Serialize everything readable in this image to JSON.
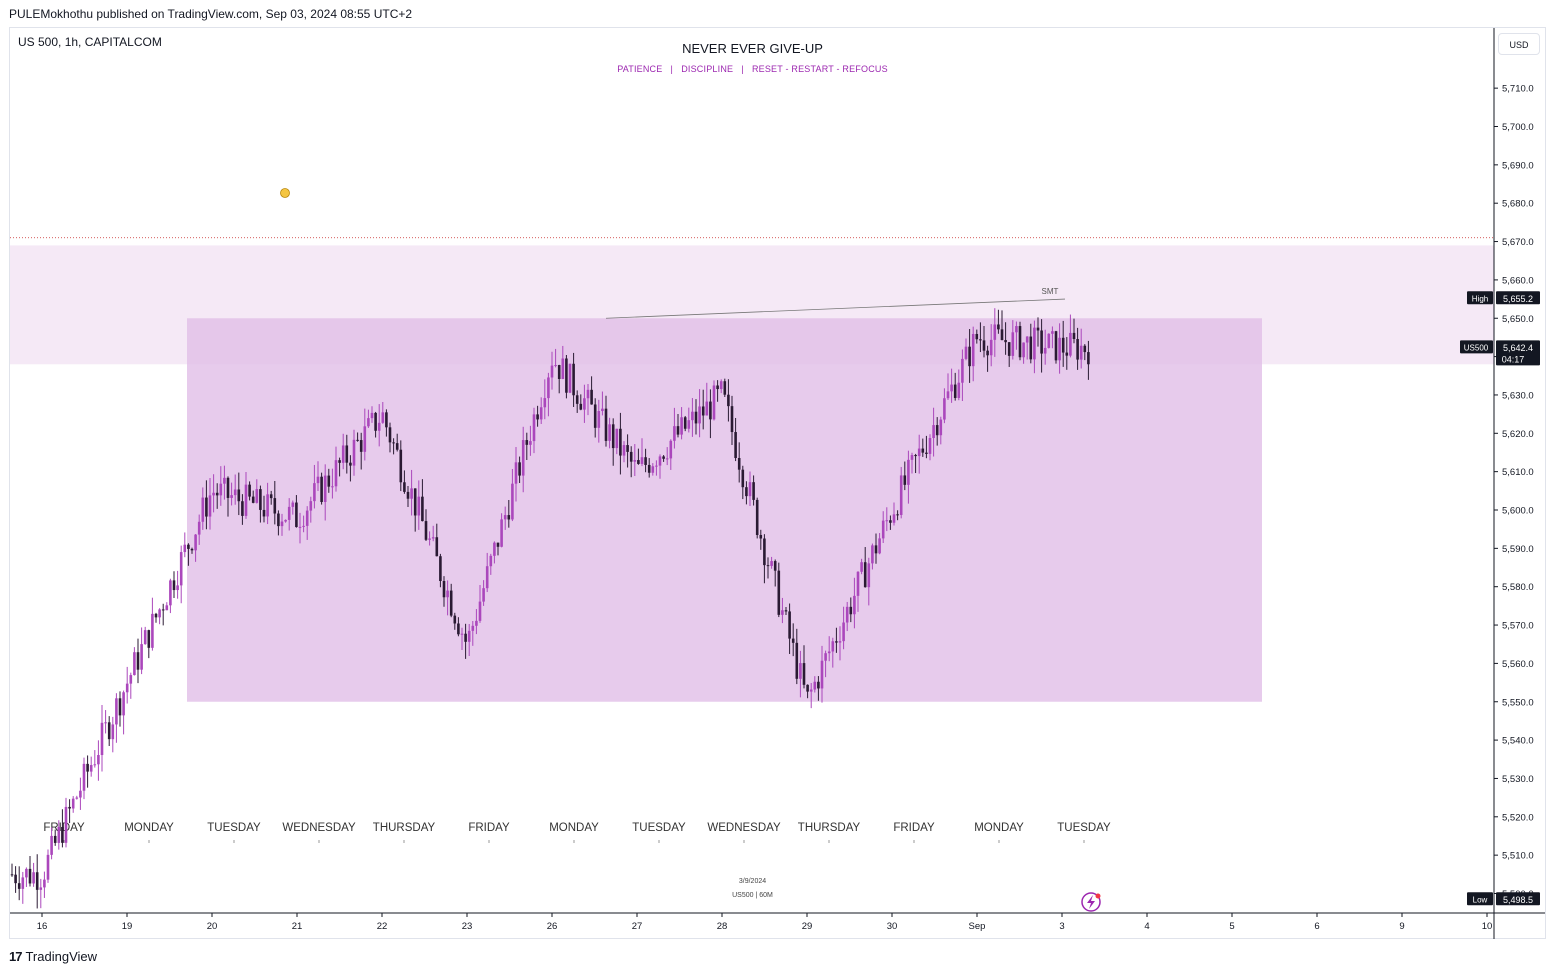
{
  "header": {
    "published": "PULEMokhothu published on TradingView.com, Sep 03, 2024 08:55 UTC+2"
  },
  "chart": {
    "symbol_label": "US 500, 1h, CAPITALCOM",
    "title": "NEVER EVER GIVE-UP",
    "subtitle": "PATIENCE   |   DISCIPLINE   |   RESET - RESTART - REFOCUS",
    "currency_button": "USD",
    "annotation_date": "3/9/2024",
    "annotation_symbol": "US500 | 60M",
    "smt_label": "SMT",
    "high_tag": "High",
    "high_value": "5,655.2",
    "low_tag": "Low",
    "low_value": "5,498.5",
    "last_tag": "US500",
    "last_value": "5,642.4",
    "countdown": "04:17",
    "brand": "TradingView"
  },
  "colors": {
    "bull": "#ab47bc",
    "bear": "#2a1a33",
    "zone_outer": "#f3e5f5",
    "zone_inner": "#e1bee7",
    "accent": "#9c27b0"
  },
  "icons": [
    "emoji-face-icon",
    "lightning-icon",
    "tradingview-logo-icon"
  ],
  "chart_data": {
    "type": "candlestick",
    "x_axis_labels": [
      "16",
      "19",
      "20",
      "21",
      "22",
      "23",
      "26",
      "27",
      "28",
      "29",
      "30",
      "Sep",
      "3",
      "4",
      "5",
      "6",
      "9",
      "10"
    ],
    "day_labels": [
      "FRIDAY",
      "MONDAY",
      "TUESDAY",
      "WEDNESDAY",
      "THURSDAY",
      "FRIDAY",
      "MONDAY",
      "TUESDAY",
      "WEDNESDAY",
      "THURSDAY",
      "FRIDAY",
      "MONDAY",
      "TUESDAY"
    ],
    "y_ticks": [
      5500,
      5510,
      5520,
      5530,
      5540,
      5550,
      5560,
      5570,
      5580,
      5590,
      5600,
      5610,
      5620,
      5630,
      5640,
      5650,
      5660,
      5670,
      5680,
      5690,
      5700,
      5710
    ],
    "ylim": [
      5496,
      5718
    ],
    "key_points": [
      {
        "day": "16",
        "price": 5505
      },
      {
        "day": "19",
        "price": 5555
      },
      {
        "day": "20",
        "price": 5605
      },
      {
        "day": "21",
        "price": 5598
      },
      {
        "day": "22",
        "price": 5625
      },
      {
        "day": "23",
        "price": 5565
      },
      {
        "day": "26",
        "price": 5640
      },
      {
        "day": "27",
        "price": 5610
      },
      {
        "day": "28",
        "price": 5630
      },
      {
        "day": "29",
        "price": 5550
      },
      {
        "day": "30",
        "price": 5600
      },
      {
        "day": "Sep",
        "price": 5645
      },
      {
        "day": "3",
        "price": 5642.4
      }
    ],
    "zones": [
      {
        "name": "outer",
        "from": 5638,
        "to": 5669
      },
      {
        "name": "inner",
        "from": 5550,
        "to": 5650
      }
    ],
    "dotted_level": 5671,
    "smt_line": {
      "from": 5650,
      "to": 5655
    },
    "high": 5655.2,
    "low": 5498.5,
    "last": 5642.4
  }
}
